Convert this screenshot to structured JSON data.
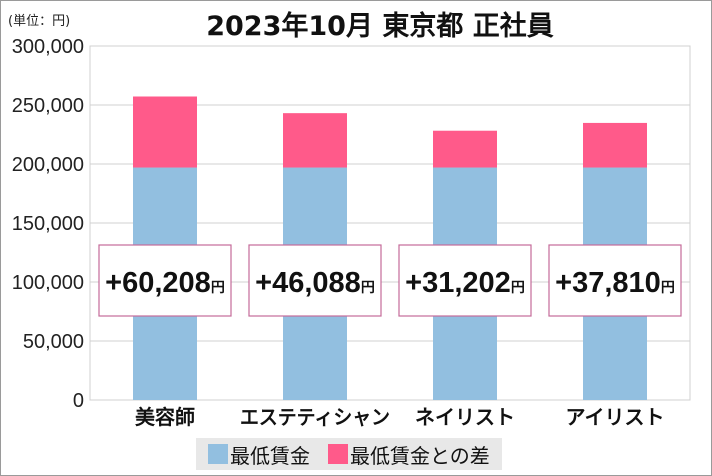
{
  "chart_data": {
    "type": "bar",
    "stacked": true,
    "title": "2023年10月 東京都 正社員",
    "unit_label": "(単位：円)",
    "categories": [
      "美容師",
      "エステティシャン",
      "ネイリスト",
      "アイリスト"
    ],
    "series": [
      {
        "name": "最低賃金",
        "color": "#92bfe0",
        "values": [
          197000,
          197000,
          197000,
          197000
        ]
      },
      {
        "name": "最低賃金との差",
        "color": "#ff5a8a",
        "values": [
          60208,
          46088,
          31202,
          37810
        ]
      }
    ],
    "data_labels": [
      "+60,208",
      "+46,088",
      "+31,202",
      "+37,810"
    ],
    "data_label_unit": "円",
    "ylim": [
      0,
      300000
    ],
    "yticks": [
      0,
      50000,
      100000,
      150000,
      200000,
      250000,
      300000
    ],
    "ytick_labels": [
      "0",
      "50,000",
      "100,000",
      "150,000",
      "200,000",
      "250,000",
      "300,000"
    ],
    "grid": true,
    "legend_position": "bottom"
  }
}
